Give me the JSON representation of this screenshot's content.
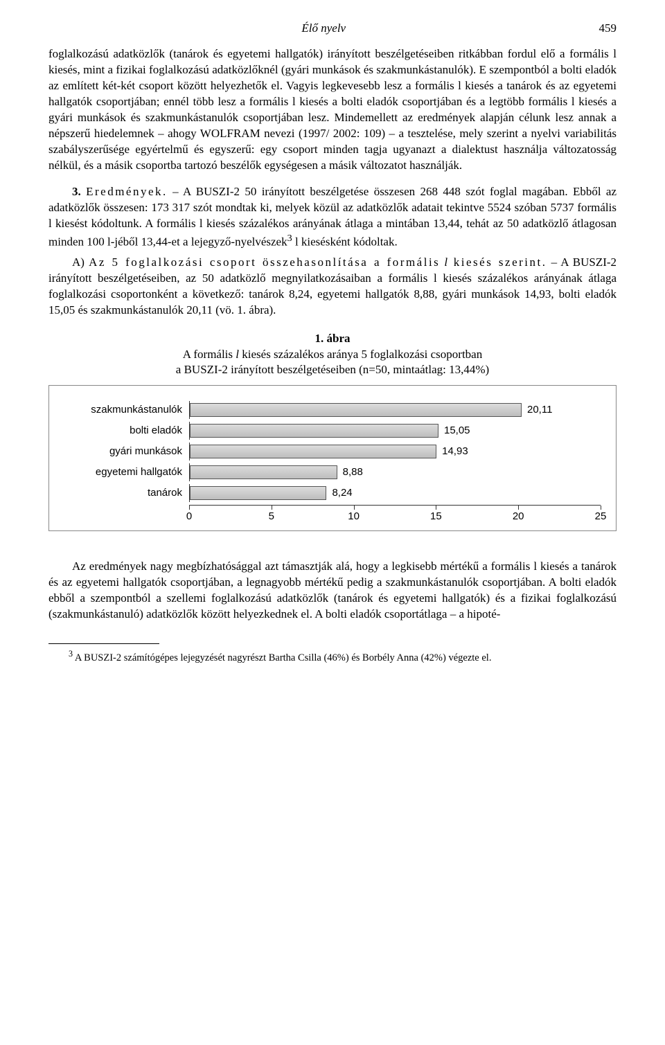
{
  "header": {
    "title": "Élő nyelv",
    "page": "459"
  },
  "para1": "foglalkozású adatközlők (tanárok és egyetemi hallgatók) irányított beszélgetéseiben ritkábban fordul elő a formális l kiesés, mint a fizikai foglalkozású adatközlőknél (gyári munkások és szakmunkástanulók). E szempontból a bolti eladók az említett két-két csoport között helyezhetők el. Vagyis legkevesebb lesz a formális l kiesés a tanárok és az egyetemi hallgatók csoportjában; ennél több lesz a formális l kiesés a bolti eladók csoportjában és a legtöbb formális l kiesés a gyári munkások és szakmunkástanulók csoportjában lesz. Mindemellett az eredmények alapján célunk lesz annak a népszerű hiedelemnek – ahogy WOLFRAM nevezi (1997/ 2002: 109) – a tesztelése, mely szerint a nyelvi variabilitás szabályszerűsége egyértelmű és egyszerű: egy csoport minden tagja ugyanazt a dialektust használja változatosság nélkül, és a másik csoportba tartozó beszélők egységesen a másik változatot használják.",
  "section3": {
    "num": "3.",
    "title": "Eredmények.",
    "text_a": " – A BUSZI-2 50 irányított beszélgetése összesen 268 448 szót foglal magában. Ebből az adatközlők összesen: 173 317 szót mondtak ki, melyek közül az adatközlők adatait tekintve 5524 szóban 5737 formális l kiesést kódoltunk. A formális l kiesés százalékos arányának átlaga a mintában 13,44, tehát az 50 adatközlő átlagosan minden 100 l-jéből 13,44-et a lejegyző-nyelvészek",
    "sup": "3",
    "text_b": " l kiesésként kódoltak."
  },
  "subsectionA": {
    "label": "A)",
    "title1": "Az 5 foglalkozási csoport összehasonlítása a formális",
    "ital": "l",
    "title2": "kiesés szerint.",
    "text": " – A BUSZI-2 irányított beszélgetéseiben, az 50 adatközlő megnyilatkozásaiban a formális l kiesés százalékos arányának átlaga foglalkozási csoportonként a következő: tanárok 8,24, egyetemi hallgatók 8,88, gyári munkások 14,93, bolti eladók 15,05 és szakmunkástanulók 20,11 (vö. 1. ábra)."
  },
  "figure": {
    "label": "1. ábra",
    "line1a": "A formális ",
    "line1_ital": "l",
    "line1b": " kiesés százalékos aránya 5 foglalkozási csoportban",
    "line2": "a BUSZI-2 irányított beszélgetéseiben (n=50, mintaátlag: 13,44%)"
  },
  "chart": {
    "type": "horizontal-bar",
    "bar_fill": "#c8c8c8",
    "bar_border": "#555555",
    "background": "#ffffff",
    "font_family": "Arial",
    "label_fontsize": 15,
    "xlim": [
      0,
      25
    ],
    "xtick_step": 5,
    "xticks": [
      "0",
      "5",
      "10",
      "15",
      "20",
      "25"
    ],
    "series": [
      {
        "category": "szakmunkástanulók",
        "value": 20.11,
        "label": "20,11"
      },
      {
        "category": "bolti eladók",
        "value": 15.05,
        "label": "15,05"
      },
      {
        "category": "gyári munkások",
        "value": 14.93,
        "label": "14,93"
      },
      {
        "category": "egyetemi hallgatók",
        "value": 8.88,
        "label": "8,88"
      },
      {
        "category": "tanárok",
        "value": 8.24,
        "label": "8,24"
      }
    ]
  },
  "para2": "Az eredmények nagy megbízhatósággal azt támasztják alá, hogy a legkisebb mértékű a formális l kiesés a tanárok és az egyetemi hallgatók csoportjában, a legnagyobb mértékű pedig a szakmunkástanulók csoportjában. A bolti eladók ebből a szempontból a szellemi foglalkozású adatközlők (tanárok és egyetemi hallgatók) és a fizikai foglalkozású (szakmunkástanuló) adatközlők között helyezkednek el. A bolti eladók csoportátlaga – a hipoté-",
  "footnote": {
    "sup": "3",
    "text": " A BUSZI-2 számítógépes lejegyzését nagyrészt Bartha Csilla (46%) és Borbély Anna (42%) végezte el."
  }
}
